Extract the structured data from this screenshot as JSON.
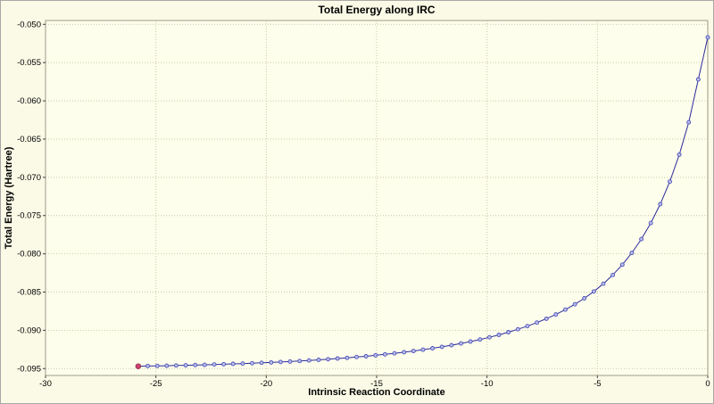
{
  "chart_data": {
    "type": "line",
    "title": "Total Energy along IRC",
    "xlabel": "Intrinsic Reaction Coordinate",
    "ylabel": "Total Energy (Hartree)",
    "xlim": [
      -30,
      0
    ],
    "ylim": [
      -0.0959,
      -0.0495
    ],
    "xticks": {
      "values": [
        -30,
        -25,
        -20,
        -15,
        -10,
        -5,
        0
      ],
      "labels": [
        "-30",
        "-25",
        "-20",
        "-15",
        "-10",
        "-5",
        "0"
      ]
    },
    "yticks": {
      "values": [
        -0.05,
        -0.055,
        -0.06,
        -0.065,
        -0.07,
        -0.075,
        -0.08,
        -0.085,
        -0.09,
        -0.095
      ],
      "labels": [
        "-0.050",
        "-0.055",
        "-0.060",
        "-0.065",
        "-0.070",
        "-0.075",
        "-0.080",
        "-0.085",
        "-0.090",
        "-0.095"
      ]
    },
    "grid": {
      "style": "dotted",
      "color": "#c9c9ae"
    },
    "line_color": "#2b2b9b",
    "marker": {
      "stroke": "#5050b8",
      "fill": "#b8c0ea",
      "radius": 2
    },
    "highlight": {
      "index": 0,
      "color": "#cc4070",
      "radius": 2.8
    },
    "series_name": "Total Energy",
    "points": [
      [
        -25.8,
        -0.0947
      ],
      [
        -25.37,
        -0.09467
      ],
      [
        -24.94,
        -0.09465
      ],
      [
        -24.51,
        -0.09463
      ],
      [
        -24.08,
        -0.0946
      ],
      [
        -23.65,
        -0.09457
      ],
      [
        -23.22,
        -0.09454
      ],
      [
        -22.79,
        -0.09451
      ],
      [
        -22.36,
        -0.09447
      ],
      [
        -21.93,
        -0.09443
      ],
      [
        -21.5,
        -0.09439
      ],
      [
        -21.07,
        -0.09435
      ],
      [
        -20.64,
        -0.0943
      ],
      [
        -20.21,
        -0.09425
      ],
      [
        -19.78,
        -0.0942
      ],
      [
        -19.35,
        -0.09414
      ],
      [
        -18.92,
        -0.09408
      ],
      [
        -18.49,
        -0.09401
      ],
      [
        -18.06,
        -0.09394
      ],
      [
        -17.63,
        -0.09386
      ],
      [
        -17.2,
        -0.09378
      ],
      [
        -16.77,
        -0.09369
      ],
      [
        -16.34,
        -0.0936
      ],
      [
        -15.91,
        -0.09349
      ],
      [
        -15.48,
        -0.09339
      ],
      [
        -15.05,
        -0.09327
      ],
      [
        -14.62,
        -0.09314
      ],
      [
        -14.19,
        -0.09301
      ],
      [
        -13.76,
        -0.09286
      ],
      [
        -13.33,
        -0.0927
      ],
      [
        -12.9,
        -0.09253
      ],
      [
        -12.47,
        -0.09235
      ],
      [
        -12.04,
        -0.09216
      ],
      [
        -11.61,
        -0.09195
      ],
      [
        -11.18,
        -0.09172
      ],
      [
        -10.75,
        -0.09147
      ],
      [
        -10.32,
        -0.0912
      ],
      [
        -9.89,
        -0.09091
      ],
      [
        -9.46,
        -0.09059
      ],
      [
        -9.03,
        -0.09024
      ],
      [
        -8.6,
        -0.08986
      ],
      [
        -8.17,
        -0.08945
      ],
      [
        -7.74,
        -0.08899
      ],
      [
        -7.31,
        -0.08848
      ],
      [
        -6.88,
        -0.08792
      ],
      [
        -6.45,
        -0.0873
      ],
      [
        -6.02,
        -0.0866
      ],
      [
        -5.59,
        -0.08581
      ],
      [
        -5.16,
        -0.08492
      ],
      [
        -4.73,
        -0.08391
      ],
      [
        -4.3,
        -0.08276
      ],
      [
        -3.87,
        -0.08142
      ],
      [
        -3.44,
        -0.07988
      ],
      [
        -3.01,
        -0.07808
      ],
      [
        -2.58,
        -0.07598
      ],
      [
        -2.15,
        -0.0735
      ],
      [
        -1.72,
        -0.07055
      ],
      [
        -1.29,
        -0.06703
      ],
      [
        -0.86,
        -0.0628
      ],
      [
        -0.43,
        -0.0572
      ],
      [
        0.0,
        -0.0517
      ]
    ]
  },
  "colors": {
    "canvas_bg": "#fafae6",
    "plot_bg": "#fefeec",
    "plot_border": "#999988",
    "tick": "#444444"
  }
}
